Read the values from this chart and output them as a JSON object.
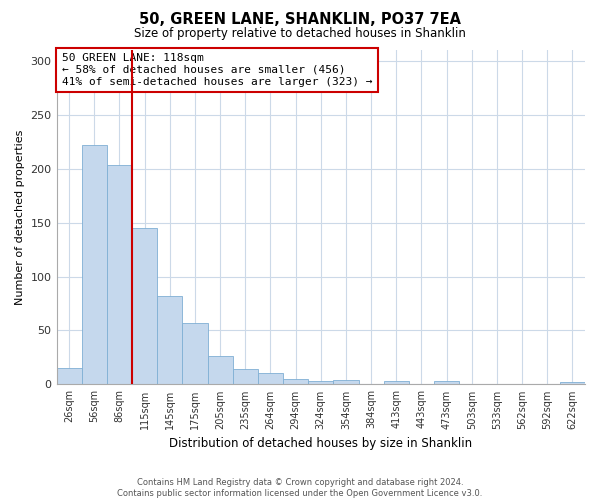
{
  "title": "50, GREEN LANE, SHANKLIN, PO37 7EA",
  "subtitle": "Size of property relative to detached houses in Shanklin",
  "xlabel": "Distribution of detached houses by size in Shanklin",
  "ylabel": "Number of detached properties",
  "bar_labels": [
    "26sqm",
    "56sqm",
    "86sqm",
    "115sqm",
    "145sqm",
    "175sqm",
    "205sqm",
    "235sqm",
    "264sqm",
    "294sqm",
    "324sqm",
    "354sqm",
    "384sqm",
    "413sqm",
    "443sqm",
    "473sqm",
    "503sqm",
    "533sqm",
    "562sqm",
    "592sqm",
    "622sqm"
  ],
  "bar_values": [
    15,
    222,
    203,
    145,
    82,
    57,
    26,
    14,
    11,
    5,
    3,
    4,
    0,
    3,
    0,
    3,
    0,
    0,
    0,
    0,
    2
  ],
  "bar_color": "#c5d8ed",
  "bar_edge_color": "#7fafd4",
  "vline_color": "#cc0000",
  "annotation_text": "50 GREEN LANE: 118sqm\n← 58% of detached houses are smaller (456)\n41% of semi-detached houses are larger (323) →",
  "annotation_box_color": "#ffffff",
  "annotation_box_edge_color": "#cc0000",
  "ylim": [
    0,
    310
  ],
  "yticks": [
    0,
    50,
    100,
    150,
    200,
    250,
    300
  ],
  "footer_text": "Contains HM Land Registry data © Crown copyright and database right 2024.\nContains public sector information licensed under the Open Government Licence v3.0.",
  "bg_color": "#ffffff",
  "grid_color": "#ccd9e8"
}
